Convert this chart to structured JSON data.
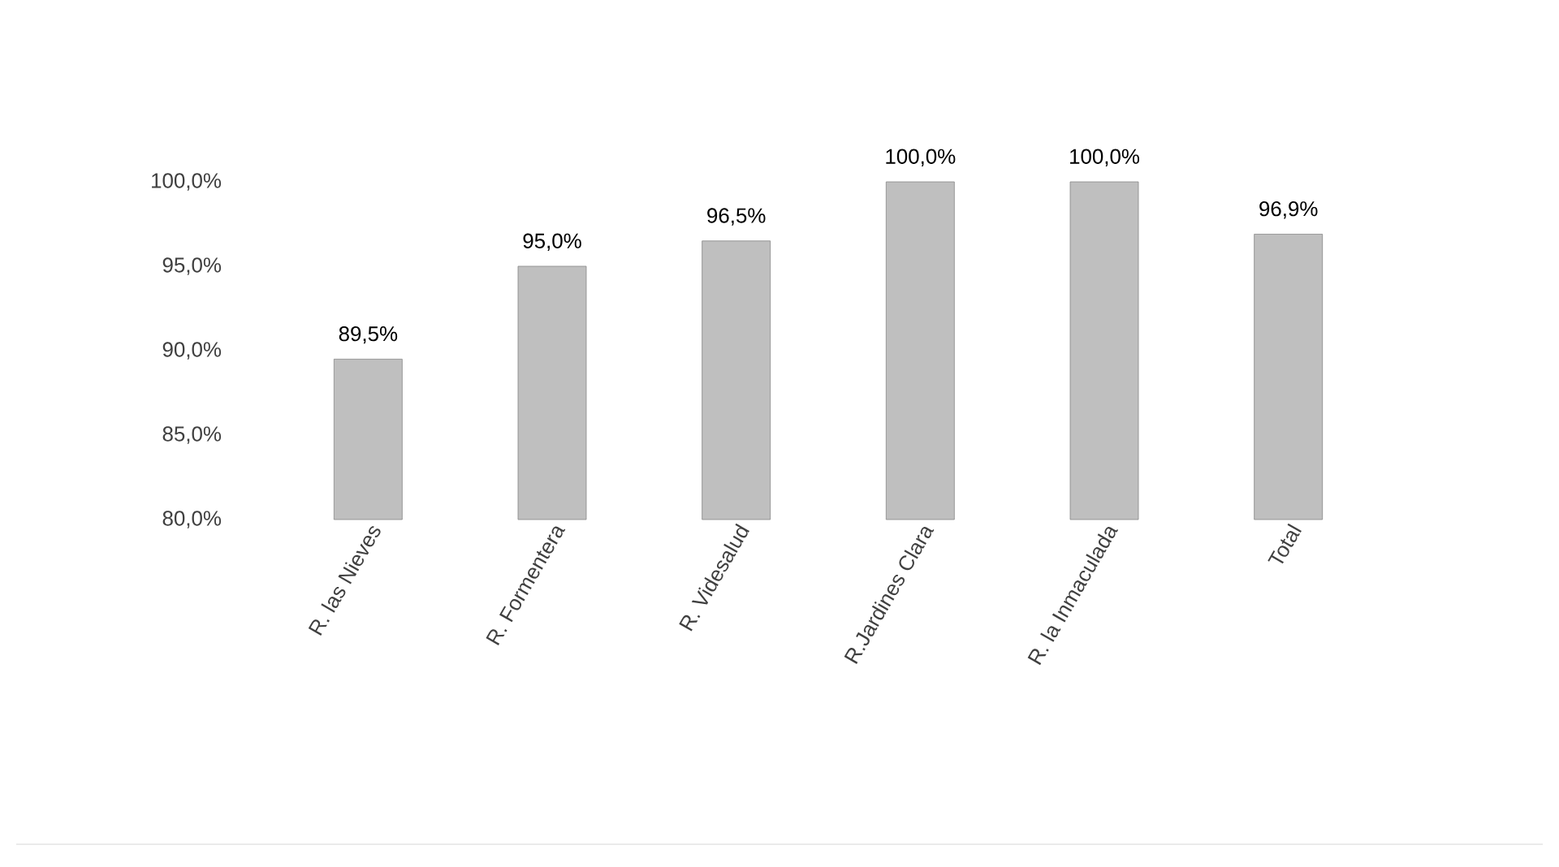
{
  "chart_data": {
    "type": "bar",
    "categories": [
      "R. las Nieves",
      "R. Formentera",
      "R. Videsalud",
      "R.Jardines Clara",
      "R. la Inmaculada",
      "Total"
    ],
    "values": [
      89.5,
      95.0,
      96.5,
      100.0,
      100.0,
      96.9
    ],
    "value_labels": [
      "89,5%",
      "95,0%",
      "96,5%",
      "100,0%",
      "100,0%",
      "96,9%"
    ],
    "color": "#bfbfbf",
    "ylim": [
      80,
      100
    ],
    "yticks": [
      {
        "value": 80,
        "label": "80,0%"
      },
      {
        "value": 85,
        "label": "85,0%"
      },
      {
        "value": 90,
        "label": "90,0%"
      },
      {
        "value": 95,
        "label": "95,0%"
      },
      {
        "value": 100,
        "label": "100,0%"
      }
    ],
    "grid": false
  }
}
